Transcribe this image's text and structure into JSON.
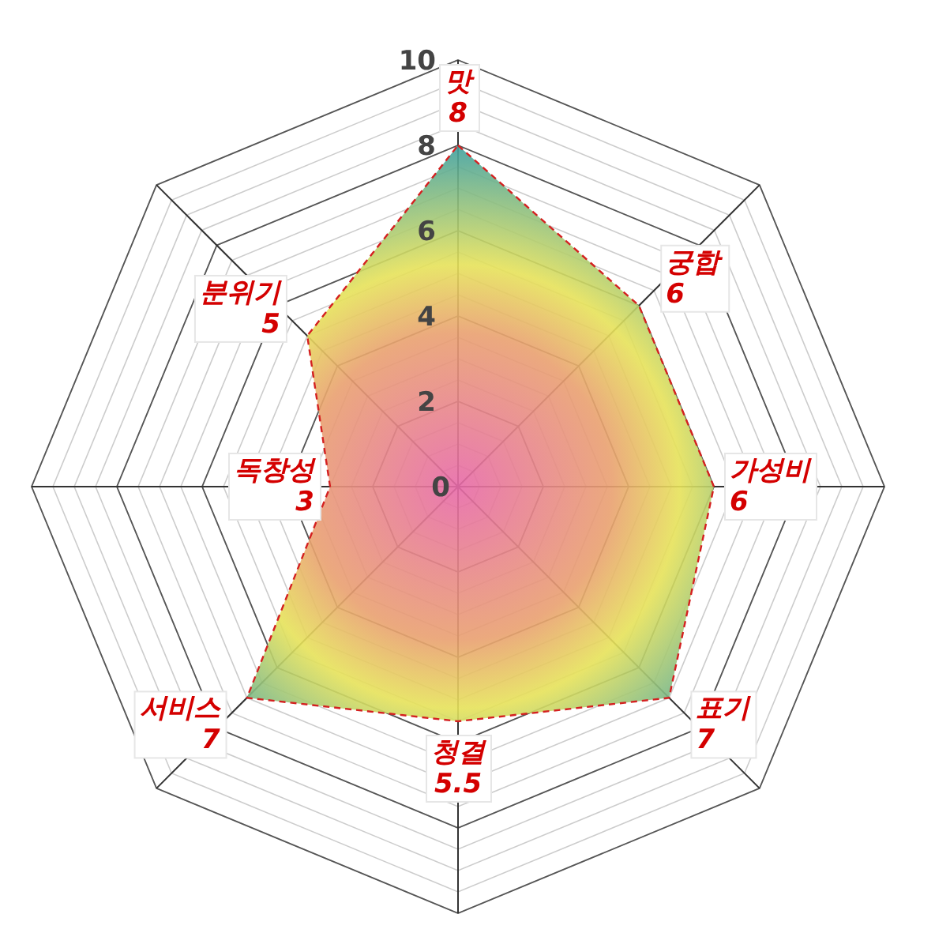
{
  "chart_data": {
    "type": "radar",
    "categories": [
      "맛",
      "궁합",
      "가성비",
      "표기",
      "청결",
      "서비스",
      "독창성",
      "분위기"
    ],
    "series": [
      {
        "color": "#d42020",
        "values": [
          8,
          6,
          6,
          7,
          5.5,
          7,
          3,
          5
        ]
      }
    ],
    "ylim": [
      0,
      10
    ],
    "yticks": [
      0,
      2,
      4,
      6,
      8,
      10
    ],
    "grid": true,
    "data_labels": true,
    "line_style": "dashed",
    "marker": "none"
  }
}
